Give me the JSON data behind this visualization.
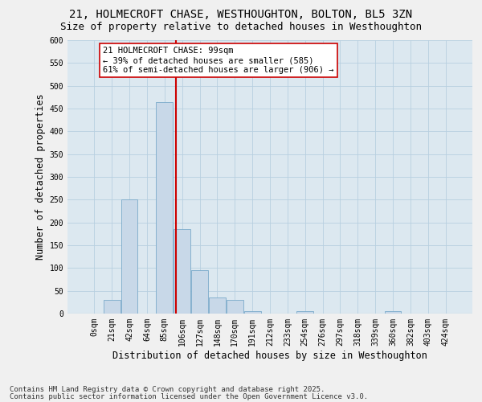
{
  "title_line1": "21, HOLMECROFT CHASE, WESTHOUGHTON, BOLTON, BL5 3ZN",
  "title_line2": "Size of property relative to detached houses in Westhoughton",
  "xlabel": "Distribution of detached houses by size in Westhoughton",
  "ylabel": "Number of detached properties",
  "categories": [
    "0sqm",
    "21sqm",
    "42sqm",
    "64sqm",
    "85sqm",
    "106sqm",
    "127sqm",
    "148sqm",
    "170sqm",
    "191sqm",
    "212sqm",
    "233sqm",
    "254sqm",
    "276sqm",
    "297sqm",
    "318sqm",
    "339sqm",
    "360sqm",
    "382sqm",
    "403sqm",
    "424sqm"
  ],
  "bar_values": [
    0,
    30,
    250,
    0,
    465,
    185,
    95,
    35,
    30,
    5,
    0,
    0,
    5,
    0,
    0,
    0,
    0,
    5,
    0,
    0,
    0
  ],
  "bar_color": "#c8d8e8",
  "bar_edge_color": "#7aaaca",
  "grid_color": "#b8cfe0",
  "background_color": "#dce8f0",
  "vline_x": 4.67,
  "vline_color": "#cc0000",
  "annotation_text": "21 HOLMECROFT CHASE: 99sqm\n← 39% of detached houses are smaller (585)\n61% of semi-detached houses are larger (906) →",
  "annotation_box_color": "#ffffff",
  "annotation_box_edge": "#cc0000",
  "ylim": [
    0,
    600
  ],
  "yticks": [
    0,
    50,
    100,
    150,
    200,
    250,
    300,
    350,
    400,
    450,
    500,
    550,
    600
  ],
  "footer_line1": "Contains HM Land Registry data © Crown copyright and database right 2025.",
  "footer_line2": "Contains public sector information licensed under the Open Government Licence v3.0.",
  "title_fontsize": 10,
  "subtitle_fontsize": 9,
  "label_fontsize": 8.5,
  "tick_fontsize": 7,
  "footer_fontsize": 6.5,
  "annotation_fontsize": 7.5
}
